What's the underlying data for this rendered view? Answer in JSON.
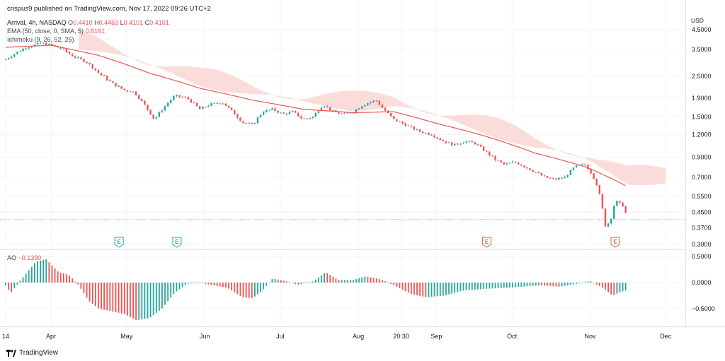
{
  "header": {
    "published": "crispus9 published on TradingView.com, Nov 17, 2022 09:26 UTC+2",
    "symbol": "Arrival, 4h, NASDAQ",
    "ohlc": [
      {
        "k": "O",
        "v": "0.4410"
      },
      {
        "k": "H",
        "v": "0.4463"
      },
      {
        "k": "L",
        "v": "0.4101"
      },
      {
        "k": "C",
        "v": "0.4101"
      }
    ],
    "ema_label": "EMA (50, close, 0, SMA, 5)",
    "ema_value": "0.6161",
    "ichimoku_label": "Ichimoku (9, 26, 52, 26)",
    "ao_label": "AO",
    "ao_value": "−0.1390",
    "currency": "USD"
  },
  "brand": "TradingView",
  "colors": {
    "up": "#26a69a",
    "down": "#ef5350",
    "ema": "#ef5350",
    "cloud_red": "#f9d7d5",
    "cloud_green": "#d3eedb",
    "grid": "#f0f3fa",
    "axis_text": "#131722"
  },
  "chart_data": [
    {
      "type": "candlestick",
      "title": "Arrival, 4h, NASDAQ",
      "y_scale": "log",
      "y_ticks": [
        4.5,
        3.5,
        2.5,
        1.9,
        1.5,
        1.2,
        0.9,
        0.7,
        0.55,
        0.45,
        0.37,
        0.3
      ],
      "y_tick_labels": [
        "4.5000",
        "3.5000",
        "2.5000",
        "1.9000",
        "1.5000",
        "1.2000",
        "0.9000",
        "0.7000",
        "0.5500",
        "0.4500",
        "0.3700",
        "0.3000"
      ],
      "x_tick_labels": [
        "14",
        "Apr",
        "May",
        "Jun",
        "Jul",
        "Aug",
        "20:30",
        "Sep",
        "Oct",
        "Nov",
        "Dec"
      ],
      "current_price": 0.4101,
      "close_path": [
        {
          "d": "Mar 14",
          "v": 3.1
        },
        {
          "d": "Mar 18",
          "v": 3.35
        },
        {
          "d": "Mar 22",
          "v": 3.6
        },
        {
          "d": "Mar 28",
          "v": 3.8
        },
        {
          "d": "Apr 1",
          "v": 3.7
        },
        {
          "d": "Apr 5",
          "v": 3.55
        },
        {
          "d": "Apr 10",
          "v": 3.2
        },
        {
          "d": "Apr 15",
          "v": 3.0
        },
        {
          "d": "Apr 20",
          "v": 2.6
        },
        {
          "d": "Apr 25",
          "v": 2.3
        },
        {
          "d": "Apr 30",
          "v": 2.1
        },
        {
          "d": "May 4",
          "v": 2.05
        },
        {
          "d": "May 8",
          "v": 1.75
        },
        {
          "d": "May 12",
          "v": 1.45
        },
        {
          "d": "May 16",
          "v": 1.7
        },
        {
          "d": "May 20",
          "v": 1.95
        },
        {
          "d": "May 25",
          "v": 1.9
        },
        {
          "d": "May 30",
          "v": 1.65
        },
        {
          "d": "Jun 3",
          "v": 1.75
        },
        {
          "d": "Jun 8",
          "v": 1.8
        },
        {
          "d": "Jun 12",
          "v": 1.6
        },
        {
          "d": "Jun 16",
          "v": 1.4
        },
        {
          "d": "Jun 20",
          "v": 1.35
        },
        {
          "d": "Jun 24",
          "v": 1.6
        },
        {
          "d": "Jun 28",
          "v": 1.65
        },
        {
          "d": "Jul 2",
          "v": 1.55
        },
        {
          "d": "Jul 6",
          "v": 1.6
        },
        {
          "d": "Jul 10",
          "v": 1.45
        },
        {
          "d": "Jul 14",
          "v": 1.5
        },
        {
          "d": "Jul 18",
          "v": 1.75
        },
        {
          "d": "Jul 22",
          "v": 1.6
        },
        {
          "d": "Jul 26",
          "v": 1.55
        },
        {
          "d": "Jul 30",
          "v": 1.6
        },
        {
          "d": "Aug 3",
          "v": 1.75
        },
        {
          "d": "Aug 8",
          "v": 1.85
        },
        {
          "d": "Aug 11",
          "v": 1.65
        },
        {
          "d": "Aug 15",
          "v": 1.45
        },
        {
          "d": "Aug 20",
          "v": 1.35
        },
        {
          "d": "Aug 25",
          "v": 1.25
        },
        {
          "d": "Aug 30",
          "v": 1.2
        },
        {
          "d": "Sep 4",
          "v": 1.1
        },
        {
          "d": "Sep 8",
          "v": 1.05
        },
        {
          "d": "Sep 12",
          "v": 1.1
        },
        {
          "d": "Sep 16",
          "v": 1.08
        },
        {
          "d": "Sep 20",
          "v": 0.98
        },
        {
          "d": "Sep 24",
          "v": 0.88
        },
        {
          "d": "Sep 28",
          "v": 0.82
        },
        {
          "d": "Oct 2",
          "v": 0.85
        },
        {
          "d": "Oct 6",
          "v": 0.8
        },
        {
          "d": "Oct 10",
          "v": 0.75
        },
        {
          "d": "Oct 14",
          "v": 0.7
        },
        {
          "d": "Oct 18",
          "v": 0.68
        },
        {
          "d": "Oct 22",
          "v": 0.7
        },
        {
          "d": "Oct 26",
          "v": 0.8
        },
        {
          "d": "Oct 30",
          "v": 0.82
        },
        {
          "d": "Nov 2",
          "v": 0.72
        },
        {
          "d": "Nov 4",
          "v": 0.62
        },
        {
          "d": "Nov 7",
          "v": 0.38
        },
        {
          "d": "Nov 9",
          "v": 0.4
        },
        {
          "d": "Nov 11",
          "v": 0.52
        },
        {
          "d": "Nov 14",
          "v": 0.49
        },
        {
          "d": "Nov 16",
          "v": 0.41
        }
      ],
      "ema_path": [
        {
          "d": "Mar 14",
          "v": 3.6
        },
        {
          "d": "Apr 1",
          "v": 3.7
        },
        {
          "d": "Apr 20",
          "v": 3.25
        },
        {
          "d": "May 10",
          "v": 2.6
        },
        {
          "d": "May 30",
          "v": 2.15
        },
        {
          "d": "Jun 20",
          "v": 1.85
        },
        {
          "d": "Jul 10",
          "v": 1.65
        },
        {
          "d": "Jul 30",
          "v": 1.58
        },
        {
          "d": "Aug 15",
          "v": 1.6
        },
        {
          "d": "Sep 1",
          "v": 1.38
        },
        {
          "d": "Sep 20",
          "v": 1.18
        },
        {
          "d": "Oct 10",
          "v": 0.95
        },
        {
          "d": "Oct 30",
          "v": 0.8
        },
        {
          "d": "Nov 16",
          "v": 0.62
        }
      ],
      "earnings_markers": [
        {
          "d": "Apr 28",
          "label": "E",
          "type": "up"
        },
        {
          "d": "May 21",
          "label": "E",
          "type": "up"
        },
        {
          "d": "Sep 21",
          "label": "E",
          "type": "down"
        },
        {
          "d": "Nov 11",
          "label": "E",
          "type": "down"
        }
      ]
    },
    {
      "type": "bar",
      "title": "AO",
      "y_ticks": [
        0.5,
        0.0,
        -0.5
      ],
      "y_tick_labels": [
        "0.5000",
        "0.0000",
        "−0.5000"
      ],
      "current_value": -0.139,
      "value_path": [
        {
          "d": "Mar 14",
          "v": -0.05
        },
        {
          "d": "Mar 16",
          "v": -0.2
        },
        {
          "d": "Mar 20",
          "v": 0.05
        },
        {
          "d": "Mar 26",
          "v": 0.4
        },
        {
          "d": "Mar 30",
          "v": 0.45
        },
        {
          "d": "Apr 4",
          "v": 0.2
        },
        {
          "d": "Apr 8",
          "v": 0.15
        },
        {
          "d": "Apr 12",
          "v": -0.05
        },
        {
          "d": "Apr 16",
          "v": -0.35
        },
        {
          "d": "Apr 20",
          "v": -0.5
        },
        {
          "d": "Apr 25",
          "v": -0.55
        },
        {
          "d": "Apr 30",
          "v": -0.6
        },
        {
          "d": "May 5",
          "v": -0.72
        },
        {
          "d": "May 10",
          "v": -0.68
        },
        {
          "d": "May 15",
          "v": -0.5
        },
        {
          "d": "May 20",
          "v": -0.2
        },
        {
          "d": "May 25",
          "v": -0.02
        },
        {
          "d": "May 30",
          "v": 0.0
        },
        {
          "d": "Jun 4",
          "v": -0.05
        },
        {
          "d": "Jun 10",
          "v": -0.1
        },
        {
          "d": "Jun 16",
          "v": -0.28
        },
        {
          "d": "Jun 20",
          "v": -0.3
        },
        {
          "d": "Jun 24",
          "v": -0.15
        },
        {
          "d": "Jun 28",
          "v": 0.08
        },
        {
          "d": "Jul 2",
          "v": 0.04
        },
        {
          "d": "Jul 8",
          "v": -0.04
        },
        {
          "d": "Jul 14",
          "v": 0.02
        },
        {
          "d": "Jul 19",
          "v": 0.2
        },
        {
          "d": "Jul 24",
          "v": 0.05
        },
        {
          "d": "Jul 30",
          "v": 0.05
        },
        {
          "d": "Aug 4",
          "v": 0.12
        },
        {
          "d": "Aug 10",
          "v": 0.06
        },
        {
          "d": "Aug 15",
          "v": -0.05
        },
        {
          "d": "Aug 22",
          "v": -0.22
        },
        {
          "d": "Aug 28",
          "v": -0.28
        },
        {
          "d": "Sep 4",
          "v": -0.25
        },
        {
          "d": "Sep 12",
          "v": -0.15
        },
        {
          "d": "Sep 20",
          "v": -0.12
        },
        {
          "d": "Sep 28",
          "v": -0.1
        },
        {
          "d": "Oct 5",
          "v": -0.08
        },
        {
          "d": "Oct 12",
          "v": -0.05
        },
        {
          "d": "Oct 20",
          "v": -0.08
        },
        {
          "d": "Oct 27",
          "v": -0.02
        },
        {
          "d": "Nov 1",
          "v": 0.03
        },
        {
          "d": "Nov 6",
          "v": -0.1
        },
        {
          "d": "Nov 10",
          "v": -0.25
        },
        {
          "d": "Nov 13",
          "v": -0.18
        },
        {
          "d": "Nov 16",
          "v": -0.139
        }
      ]
    }
  ]
}
